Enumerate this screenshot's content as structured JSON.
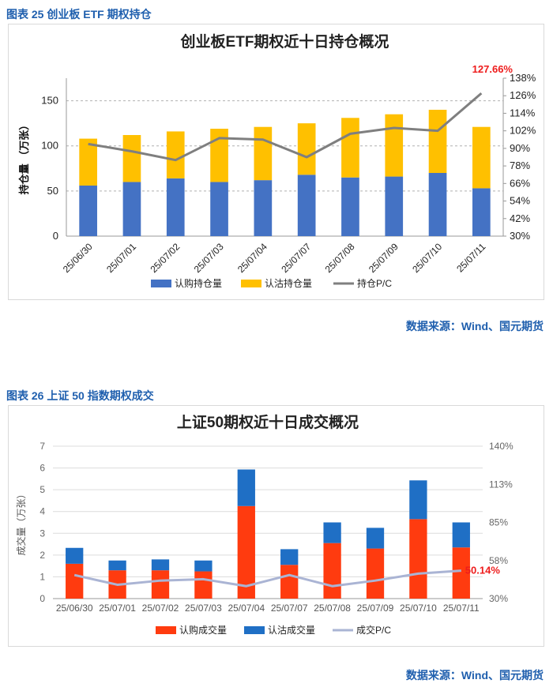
{
  "figure1": {
    "caption": "图表 25  创业板 ETF 期权持仓",
    "source": "数据来源：Wind、国元期货"
  },
  "figure2": {
    "caption": "图表 26  上证 50 指数期权成交",
    "source": "数据来源：Wind、国元期货"
  },
  "chart_data": [
    {
      "type": "bar",
      "stacked": true,
      "title": "创业板ETF期权近十日持仓概况",
      "ylabel": "持仓量 （万张）",
      "y2label": "",
      "categories": [
        "25/06/30",
        "25/07/01",
        "25/07/02",
        "25/07/03",
        "25/07/04",
        "25/07/07",
        "25/07/08",
        "25/07/09",
        "25/07/10",
        "25/07/11"
      ],
      "ylim": [
        0,
        175
      ],
      "yticks": [
        0,
        50,
        100,
        150
      ],
      "y2lim": [
        30,
        138
      ],
      "y2ticks": [
        "30%",
        "42%",
        "54%",
        "66%",
        "78%",
        "90%",
        "102%",
        "114%",
        "126%",
        "138%"
      ],
      "series": [
        {
          "name": "认购持仓量",
          "kind": "bar",
          "color": "#4472c4",
          "values": [
            56,
            60,
            64,
            60,
            62,
            68,
            65,
            66,
            70,
            53
          ]
        },
        {
          "name": "认沽持仓量",
          "kind": "bar",
          "color": "#ffc000",
          "values": [
            52,
            52,
            52,
            59,
            59,
            57,
            66,
            69,
            70,
            68
          ]
        },
        {
          "name": "持仓P/C",
          "kind": "line",
          "axis": "right",
          "color": "#7f7f7f",
          "values": [
            93,
            88,
            82,
            97,
            96,
            84,
            100,
            104,
            102,
            127.66
          ]
        }
      ],
      "annotation": "127.66%",
      "legend_position": "bottom",
      "grid": true
    },
    {
      "type": "bar",
      "stacked": true,
      "title": "上证50期权近十日成交概况",
      "ylabel": "成交量（万张）",
      "categories": [
        "25/06/30",
        "25/07/01",
        "25/07/02",
        "25/07/03",
        "25/07/04",
        "25/07/07",
        "25/07/08",
        "25/07/09",
        "25/07/10",
        "25/07/11"
      ],
      "ylim": [
        0,
        7
      ],
      "yticks": [
        0,
        1,
        2,
        3,
        4,
        5,
        6,
        7
      ],
      "y2lim": [
        30,
        140
      ],
      "y2ticks": [
        "30%",
        "58%",
        "85%",
        "113%",
        "140%"
      ],
      "series": [
        {
          "name": "认购成交量",
          "kind": "bar",
          "color": "#ff3b0f",
          "values": [
            1.6,
            1.3,
            1.3,
            1.25,
            4.25,
            1.55,
            2.55,
            2.3,
            3.65,
            2.35
          ]
        },
        {
          "name": "认沽成交量",
          "kind": "bar",
          "color": "#1f6fc5",
          "values": [
            0.73,
            0.45,
            0.5,
            0.5,
            1.68,
            0.72,
            0.95,
            0.95,
            1.78,
            1.15
          ]
        },
        {
          "name": "成交P/C",
          "kind": "line",
          "axis": "right",
          "color": "#aab4d4",
          "values": [
            47,
            40,
            43,
            44,
            39,
            47,
            39,
            43,
            48,
            50.14
          ]
        }
      ],
      "annotation": "50.14%",
      "legend_position": "bottom",
      "grid": true
    }
  ]
}
